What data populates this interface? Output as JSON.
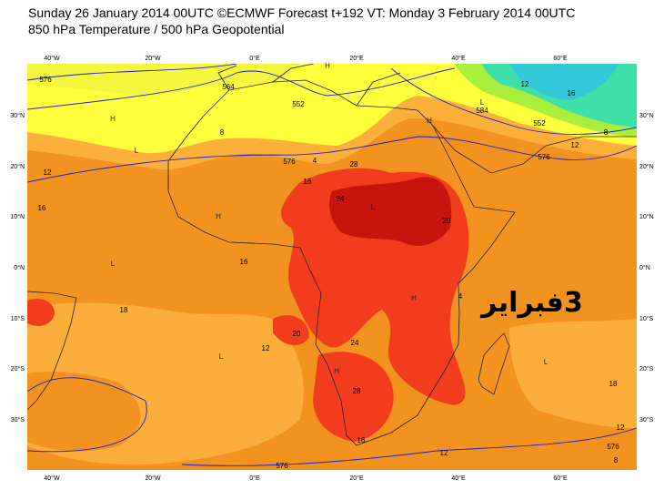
{
  "header": {
    "line1": "Sunday 26 January 2014 00UTC ©ECMWF Forecast t+192 VT: Monday 3 February 2014 00UTC",
    "line2": "850 hPa Temperature / 500 hPa Geopotential"
  },
  "map": {
    "lon_labels": [
      "40°W",
      "20°W",
      "0°E",
      "20°E",
      "40°E",
      "60°E"
    ],
    "lat_labels": [
      "30°N",
      "20°N",
      "10°N",
      "0°N",
      "10°S",
      "20°S",
      "30°S"
    ],
    "contour_labels": [
      "576",
      "576",
      "576",
      "576",
      "576",
      "552",
      "552",
      "584",
      "564",
      "12",
      "16",
      "16",
      "12",
      "18",
      "20",
      "24",
      "28",
      "16",
      "12",
      "24",
      "28",
      "20",
      "4",
      "16",
      "12",
      "16",
      "12",
      "8",
      "18",
      "12",
      "8",
      "8",
      "4"
    ],
    "pressure_marks": [
      "H",
      "H",
      "H",
      "L",
      "L",
      "L",
      "H",
      "L",
      "H",
      "L",
      "H",
      "L"
    ],
    "annotation": "3فبراير"
  }
}
